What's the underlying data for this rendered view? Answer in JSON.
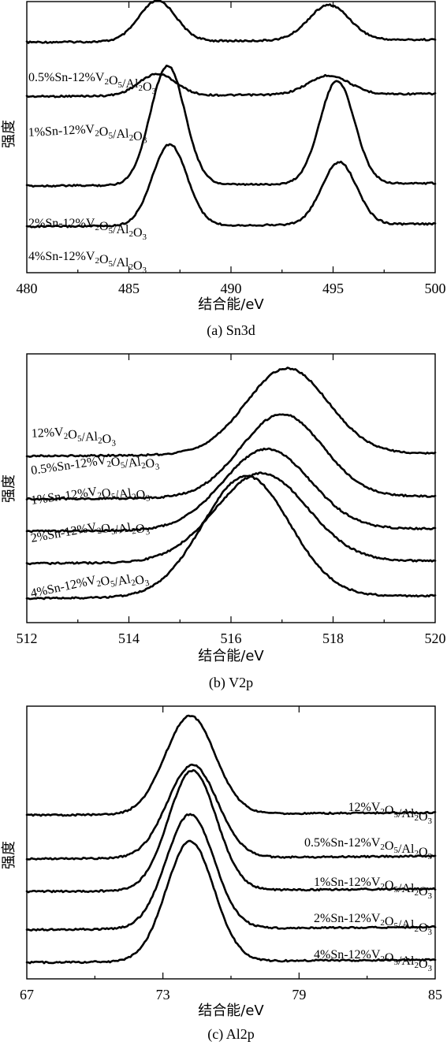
{
  "chart_data": [
    {
      "type": "line",
      "caption": "(a) Sn3d",
      "xlabel": "结合能/eV",
      "ylabel": "强度",
      "xlim": [
        480,
        500
      ],
      "xticks": [
        480,
        485,
        490,
        495,
        500
      ],
      "tick_labels": [
        "480",
        "485",
        "490",
        "495",
        "500"
      ],
      "x_reversed": false,
      "series": [
        {
          "name": "0.5%Sn-12%V2O5/Al2O3",
          "baseline": 0.15,
          "peaks": [
            {
              "center": 486.4,
              "height": 0.15,
              "width": 0.9
            },
            {
              "center": 494.8,
              "height": 0.13,
              "width": 1.0
            }
          ]
        },
        {
          "name": "1%Sn-12%V2O5/Al2O3",
          "baseline": 0.35,
          "peaks": [
            {
              "center": 486.4,
              "height": 0.08,
              "width": 0.9
            },
            {
              "center": 494.8,
              "height": 0.07,
              "width": 1.0
            }
          ]
        },
        {
          "name": "2%Sn-12%V2O5/Al2O3",
          "baseline": 0.68,
          "peaks": [
            {
              "center": 486.9,
              "height": 0.44,
              "width": 0.85
            },
            {
              "center": 495.2,
              "height": 0.38,
              "width": 0.85
            }
          ]
        },
        {
          "name": "4%Sn-12%V2O5/Al2O3",
          "baseline": 0.83,
          "peaks": [
            {
              "center": 487.0,
              "height": 0.3,
              "width": 0.85
            },
            {
              "center": 495.3,
              "height": 0.23,
              "width": 0.85
            }
          ]
        }
      ]
    },
    {
      "type": "line",
      "caption": "(b) V2p",
      "xlabel": "结合能/eV",
      "ylabel": "强度",
      "xlim": [
        512,
        520
      ],
      "xticks": [
        512,
        514,
        516,
        518,
        520
      ],
      "tick_labels": [
        "512",
        "514",
        "516",
        "518",
        "520"
      ],
      "x_reversed": false,
      "series": [
        {
          "name": "12%V2O5/Al2O3",
          "baseline": 0.38,
          "peaks": [
            {
              "center": 517.1,
              "height": 0.32,
              "width": 0.8
            }
          ]
        },
        {
          "name": "0.5%Sn-12%V2O5/Al2O3",
          "baseline": 0.54,
          "peaks": [
            {
              "center": 517.0,
              "height": 0.31,
              "width": 0.8
            }
          ]
        },
        {
          "name": "1%Sn-12%V2O5/Al2O3",
          "baseline": 0.66,
          "peaks": [
            {
              "center": 516.7,
              "height": 0.3,
              "width": 0.85
            }
          ]
        },
        {
          "name": "2%Sn-12%V2O5/Al2O3",
          "baseline": 0.78,
          "peaks": [
            {
              "center": 516.6,
              "height": 0.33,
              "width": 0.9
            }
          ]
        },
        {
          "name": "4%Sn-12%V2O5/Al2O3",
          "baseline": 0.91,
          "peaks": [
            {
              "center": 516.3,
              "height": 0.45,
              "width": 0.85
            }
          ]
        }
      ]
    },
    {
      "type": "line",
      "caption": "(c) Al2p",
      "xlabel": "结合能/eV",
      "ylabel": "强度",
      "xlim": [
        67,
        85
      ],
      "xticks": [
        67,
        73,
        79,
        85
      ],
      "tick_labels": [
        "67",
        "73",
        "79",
        "85"
      ],
      "x_reversed": false,
      "series": [
        {
          "name": "12%V2O5/Al2O3",
          "baseline": 0.4,
          "peaks": [
            {
              "center": 74.2,
              "height": 0.36,
              "width": 1.1
            }
          ]
        },
        {
          "name": "0.5%Sn-12%V2O5/Al2O3",
          "baseline": 0.56,
          "peaks": [
            {
              "center": 74.3,
              "height": 0.34,
              "width": 1.1
            }
          ]
        },
        {
          "name": "1%Sn-12%V2O5/Al2O3",
          "baseline": 0.68,
          "peaks": [
            {
              "center": 74.3,
              "height": 0.44,
              "width": 1.05
            }
          ]
        },
        {
          "name": "2%Sn-12%V2O5/Al2O3",
          "baseline": 0.82,
          "peaks": [
            {
              "center": 74.2,
              "height": 0.42,
              "width": 1.05
            }
          ]
        },
        {
          "name": "4%Sn-12%V2O5/Al2O3",
          "baseline": 0.94,
          "peaks": [
            {
              "center": 74.2,
              "height": 0.44,
              "width": 1.05
            }
          ]
        }
      ]
    }
  ]
}
